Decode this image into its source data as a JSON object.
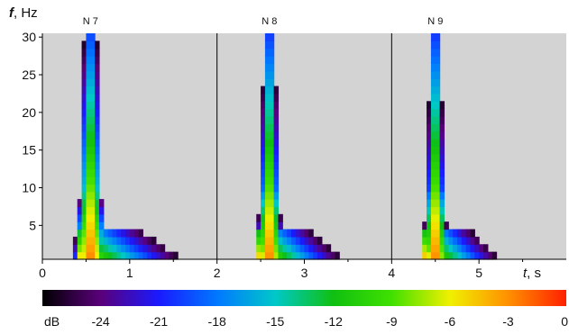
{
  "chart_data": {
    "type": "heatmap",
    "title": "",
    "ylabel": {
      "symbol": "f",
      "unit": ", Hz"
    },
    "xlabel": {
      "symbol": "t",
      "unit": ", s"
    },
    "ylim": [
      0.5,
      30.5
    ],
    "y_ticks": [
      5,
      10,
      15,
      20,
      25,
      30
    ],
    "panels": [
      {
        "label": "N 7",
        "t_start": 0,
        "t_end": 2,
        "x_ticks": [
          0,
          1,
          2
        ],
        "peak_time": 0.55,
        "width": 0.1,
        "low_spread": 1.0
      },
      {
        "label": "N 8",
        "t_start": 2,
        "t_end": 4,
        "x_ticks": [
          3,
          4
        ],
        "peak_time": 2.6,
        "width": 0.085,
        "low_spread": 0.8
      },
      {
        "label": "N 9",
        "t_start": 4,
        "t_end": 6,
        "x_ticks": [
          5
        ],
        "peak_time": 4.5,
        "width": 0.08,
        "low_spread": 0.7
      }
    ],
    "colorbar": {
      "label": "dB",
      "ticks": [
        -24,
        -21,
        -18,
        -15,
        -12,
        -9,
        -6,
        -3,
        0
      ],
      "range": [
        -27,
        0
      ],
      "colors": [
        "#000000",
        "#5a007a",
        "#1a1aff",
        "#0078ff",
        "#00c8c8",
        "#10c010",
        "#40e000",
        "#f0f000",
        "#ff9000",
        "#ff2000"
      ]
    },
    "background_color": "#d3d3d3",
    "threshold_db": -26
  }
}
